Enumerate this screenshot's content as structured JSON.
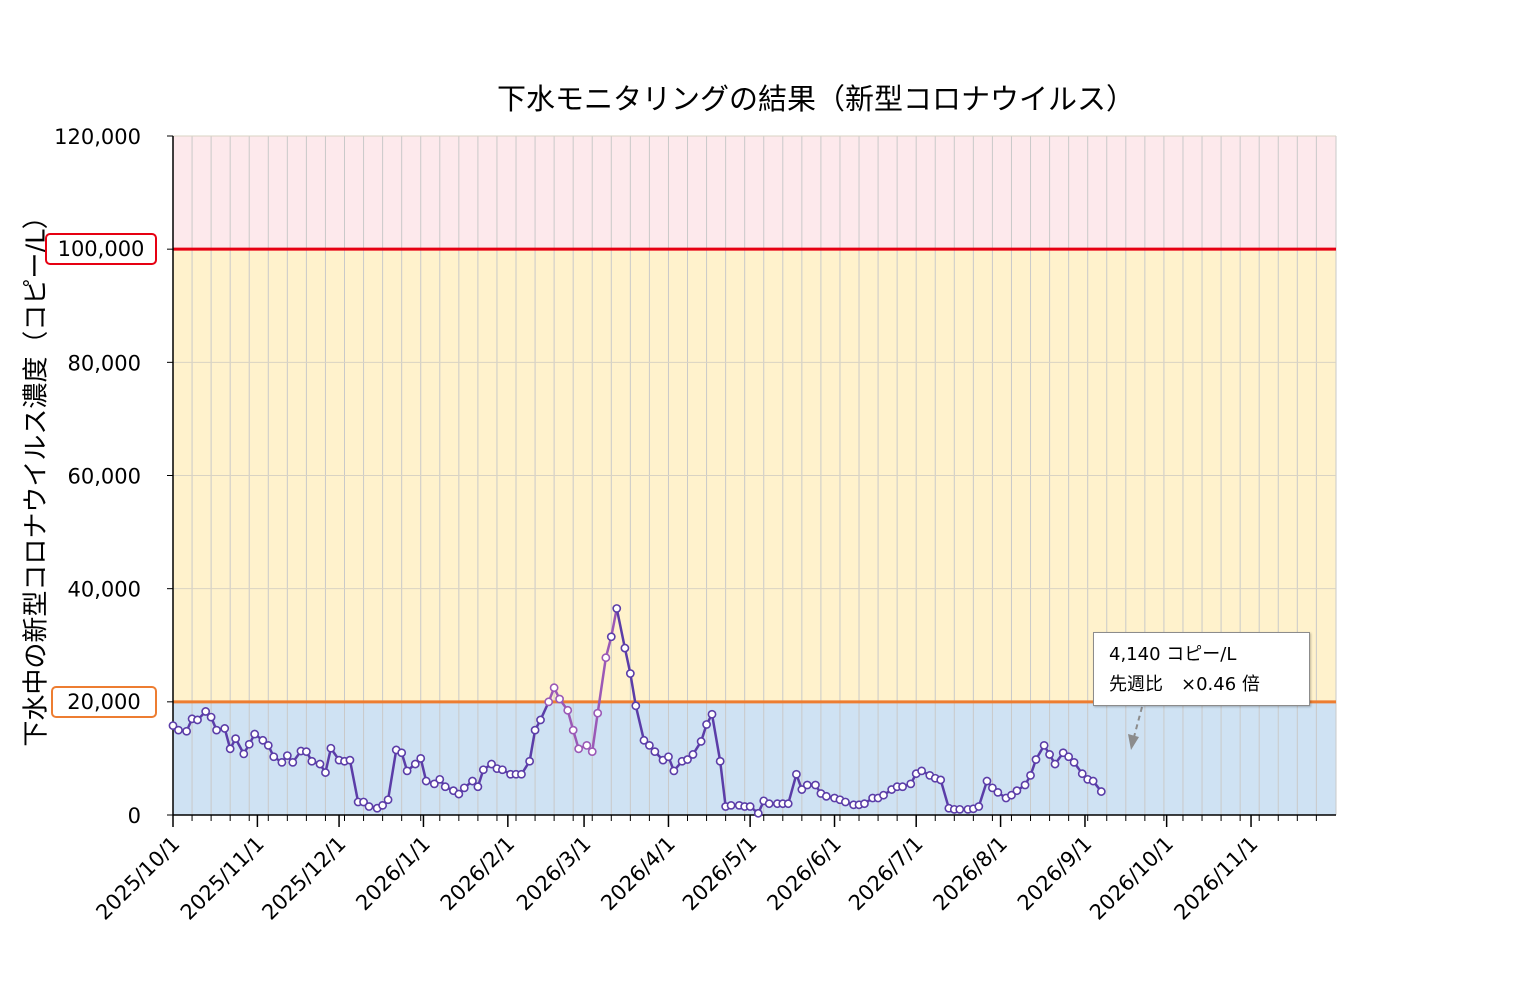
{
  "title": "下水モニタリングの結果（新型コロナウイルス）",
  "chart_data": {
    "type": "line",
    "title": "下水モニタリングの結果（新型コロナウイルス）",
    "ylabel": "下水中の新型コロナウイルス濃度（コピー/L）",
    "xlabel": "",
    "ylim": [
      0,
      120000
    ],
    "xlim": [
      "2025-10-01",
      "2026-11-30"
    ],
    "y_ticks": [
      "0",
      "20,000",
      "40,000",
      "60,000",
      "80,000",
      "100,000",
      "120,000"
    ],
    "x_ticks": [
      "2025/10/1",
      "2025/11/1",
      "2025/12/1",
      "2026/1/1",
      "2026/2/1",
      "2026/3/1",
      "2026/4/1",
      "2026/5/1",
      "2026/6/1",
      "2026/7/1",
      "2026/8/1",
      "2026/9/1",
      "2026/10/1",
      "2026/11/1"
    ],
    "grid": "vertical-weekly",
    "thresholds": [
      {
        "label": "20,000",
        "value": 20000,
        "color": "#ED7D31"
      },
      {
        "label": "100,000",
        "value": 100000,
        "color": "#E60012"
      }
    ],
    "bands": [
      {
        "from": 0,
        "to": 20000,
        "color": "#CFE2F3"
      },
      {
        "from": 20000,
        "to": 100000,
        "color": "#FFF2CC"
      },
      {
        "from": 100000,
        "to": 120000,
        "color": "#FDE9EC"
      }
    ],
    "series": [
      {
        "color": "#5B3DA8",
        "highlight_color": "#9B59B6",
        "highlight_range": [
          "2026-02-15",
          "2026-03-10"
        ],
        "points": [
          [
            "2025-10-01",
            15800
          ],
          [
            "2025-10-03",
            15000
          ],
          [
            "2025-10-06",
            14800
          ],
          [
            "2025-10-08",
            17000
          ],
          [
            "2025-10-10",
            16800
          ],
          [
            "2025-10-13",
            18300
          ],
          [
            "2025-10-15",
            17300
          ],
          [
            "2025-10-17",
            15000
          ],
          [
            "2025-10-20",
            15300
          ],
          [
            "2025-10-22",
            11700
          ],
          [
            "2025-10-24",
            13500
          ],
          [
            "2025-10-27",
            10800
          ],
          [
            "2025-10-29",
            12500
          ],
          [
            "2025-10-31",
            14300
          ],
          [
            "2025-11-03",
            13200
          ],
          [
            "2025-11-05",
            12300
          ],
          [
            "2025-11-07",
            10300
          ],
          [
            "2025-11-10",
            9300
          ],
          [
            "2025-11-12",
            10500
          ],
          [
            "2025-11-14",
            9300
          ],
          [
            "2025-11-17",
            11300
          ],
          [
            "2025-11-19",
            11200
          ],
          [
            "2025-11-21",
            9500
          ],
          [
            "2025-11-24",
            9000
          ],
          [
            "2025-11-26",
            7500
          ],
          [
            "2025-11-28",
            11800
          ],
          [
            "2025-12-01",
            9700
          ],
          [
            "2025-12-03",
            9500
          ],
          [
            "2025-12-05",
            9700
          ],
          [
            "2025-12-08",
            2300
          ],
          [
            "2025-12-10",
            2300
          ],
          [
            "2025-12-12",
            1500
          ],
          [
            "2025-12-15",
            1200
          ],
          [
            "2025-12-17",
            1700
          ],
          [
            "2025-12-19",
            2700
          ],
          [
            "2025-12-22",
            11500
          ],
          [
            "2025-12-24",
            11000
          ],
          [
            "2025-12-26",
            7800
          ],
          [
            "2025-12-29",
            9000
          ],
          [
            "2025-12-31",
            10000
          ],
          [
            "2026-01-02",
            6000
          ],
          [
            "2026-01-05",
            5500
          ],
          [
            "2026-01-07",
            6300
          ],
          [
            "2026-01-09",
            5000
          ],
          [
            "2026-01-12",
            4300
          ],
          [
            "2026-01-14",
            3700
          ],
          [
            "2026-01-16",
            4800
          ],
          [
            "2026-01-19",
            6000
          ],
          [
            "2026-01-21",
            5000
          ],
          [
            "2026-01-23",
            8000
          ],
          [
            "2026-01-26",
            9000
          ],
          [
            "2026-01-28",
            8200
          ],
          [
            "2026-01-30",
            8000
          ],
          [
            "2026-02-02",
            7200
          ],
          [
            "2026-02-04",
            7200
          ],
          [
            "2026-02-06",
            7200
          ],
          [
            "2026-02-09",
            9500
          ],
          [
            "2026-02-11",
            15000
          ],
          [
            "2026-02-13",
            16800
          ],
          [
            "2026-02-16",
            20000
          ],
          [
            "2026-02-18",
            22500
          ],
          [
            "2026-02-20",
            20500
          ],
          [
            "2026-02-23",
            18500
          ],
          [
            "2026-02-25",
            15000
          ],
          [
            "2026-02-27",
            11700
          ],
          [
            "2026-03-02",
            12300
          ],
          [
            "2026-03-04",
            11200
          ],
          [
            "2026-03-06",
            18000
          ],
          [
            "2026-03-09",
            27800
          ],
          [
            "2026-03-11",
            31500
          ],
          [
            "2026-03-13",
            36500
          ],
          [
            "2026-03-16",
            29500
          ],
          [
            "2026-03-18",
            25000
          ],
          [
            "2026-03-20",
            19300
          ],
          [
            "2026-03-23",
            13200
          ],
          [
            "2026-03-25",
            12300
          ],
          [
            "2026-03-27",
            11200
          ],
          [
            "2026-03-30",
            9700
          ],
          [
            "2026-04-01",
            10300
          ],
          [
            "2026-04-03",
            7800
          ],
          [
            "2026-04-06",
            9500
          ],
          [
            "2026-04-08",
            9800
          ],
          [
            "2026-04-10",
            10700
          ],
          [
            "2026-04-13",
            13000
          ],
          [
            "2026-04-15",
            16000
          ],
          [
            "2026-04-17",
            17800
          ],
          [
            "2026-04-20",
            9500
          ],
          [
            "2026-04-22",
            1500
          ],
          [
            "2026-04-24",
            1700
          ],
          [
            "2026-04-27",
            1700
          ],
          [
            "2026-04-29",
            1500
          ],
          [
            "2026-05-01",
            1500
          ],
          [
            "2026-05-04",
            300
          ],
          [
            "2026-05-06",
            2500
          ],
          [
            "2026-05-08",
            2000
          ],
          [
            "2026-05-11",
            2000
          ],
          [
            "2026-05-13",
            2000
          ],
          [
            "2026-05-15",
            2000
          ],
          [
            "2026-05-18",
            7200
          ],
          [
            "2026-05-20",
            4500
          ],
          [
            "2026-05-22",
            5300
          ],
          [
            "2026-05-25",
            5300
          ],
          [
            "2026-05-27",
            3800
          ],
          [
            "2026-05-29",
            3300
          ],
          [
            "2026-06-01",
            3000
          ],
          [
            "2026-06-03",
            2700
          ],
          [
            "2026-06-05",
            2300
          ],
          [
            "2026-06-08",
            1800
          ],
          [
            "2026-06-10",
            1800
          ],
          [
            "2026-06-12",
            2000
          ],
          [
            "2026-06-15",
            3000
          ],
          [
            "2026-06-17",
            3000
          ],
          [
            "2026-06-19",
            3500
          ],
          [
            "2026-06-22",
            4500
          ],
          [
            "2026-06-24",
            5000
          ],
          [
            "2026-06-26",
            5000
          ],
          [
            "2026-06-29",
            5500
          ],
          [
            "2026-07-01",
            7300
          ],
          [
            "2026-07-03",
            7800
          ],
          [
            "2026-07-06",
            7000
          ],
          [
            "2026-07-08",
            6500
          ],
          [
            "2026-07-10",
            6200
          ],
          [
            "2026-07-13",
            1200
          ],
          [
            "2026-07-15",
            1000
          ],
          [
            "2026-07-17",
            1000
          ],
          [
            "2026-07-20",
            1000
          ],
          [
            "2026-07-22",
            1100
          ],
          [
            "2026-07-24",
            1500
          ],
          [
            "2026-07-27",
            6000
          ],
          [
            "2026-07-29",
            4800
          ],
          [
            "2026-07-31",
            4000
          ],
          [
            "2026-08-03",
            3000
          ],
          [
            "2026-08-05",
            3500
          ],
          [
            "2026-08-07",
            4300
          ],
          [
            "2026-08-10",
            5300
          ],
          [
            "2026-08-12",
            7000
          ],
          [
            "2026-08-14",
            9800
          ],
          [
            "2026-08-17",
            12300
          ],
          [
            "2026-08-19",
            10700
          ],
          [
            "2026-08-21",
            9000
          ],
          [
            "2026-08-24",
            11000
          ],
          [
            "2026-08-26",
            10300
          ],
          [
            "2026-08-28",
            9300
          ],
          [
            "2026-08-31",
            7300
          ],
          [
            "2026-09-02",
            6300
          ],
          [
            "2026-09-04",
            6000
          ],
          [
            "2026-09-07",
            4140
          ]
        ]
      }
    ],
    "annotations": {
      "latest_value": "4,140 コピー/L",
      "week_ratio": "先週比　×0.46 倍"
    }
  },
  "callout": {
    "line1": "4,140 コピー/L",
    "line2": "先週比　×0.46 倍"
  },
  "colors": {
    "line": "#5B3DA8",
    "peak_line": "#9B59B6",
    "orange": "#ED7D31",
    "red": "#E60012"
  }
}
